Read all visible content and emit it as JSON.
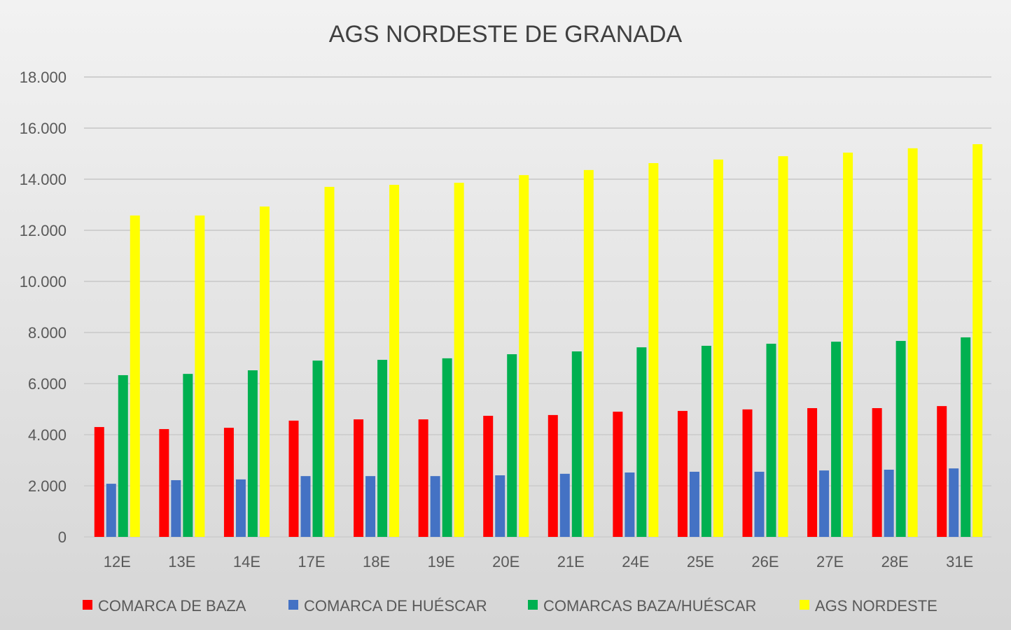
{
  "chart_data": {
    "type": "bar",
    "title": "AGS NORDESTE DE GRANADA",
    "xlabel": "",
    "ylabel": "",
    "ylim": [
      0,
      18000
    ],
    "yticks": [
      "0",
      "2.000",
      "4.000",
      "6.000",
      "8.000",
      "10.000",
      "12.000",
      "14.000",
      "16.000",
      "18.000"
    ],
    "ytick_values": [
      0,
      2000,
      4000,
      6000,
      8000,
      10000,
      12000,
      14000,
      16000,
      18000
    ],
    "grid": true,
    "legend_position": "bottom",
    "categories": [
      "12E",
      "13E",
      "14E",
      "17E",
      "18E",
      "19E",
      "20E",
      "21E",
      "24E",
      "25E",
      "26E",
      "27E",
      "28E",
      "31E"
    ],
    "series": [
      {
        "name": "COMARCA DE BAZA",
        "color": "#ff0000",
        "values": [
          4300,
          4220,
          4270,
          4550,
          4600,
          4600,
          4740,
          4770,
          4900,
          4930,
          4990,
          5040,
          5040,
          5120
        ]
      },
      {
        "name": "COMARCA DE HUÉSCAR",
        "color": "#4472c4",
        "values": [
          2080,
          2220,
          2250,
          2380,
          2380,
          2380,
          2410,
          2470,
          2520,
          2550,
          2550,
          2600,
          2630,
          2680
        ]
      },
      {
        "name": "COMARCAS BAZA/HUÉSCAR",
        "color": "#00b050",
        "values": [
          6330,
          6380,
          6520,
          6900,
          6930,
          6990,
          7150,
          7260,
          7420,
          7480,
          7560,
          7640,
          7670,
          7810
        ]
      },
      {
        "name": "AGS NORDESTE",
        "color": "#ffff00",
        "values": [
          12580,
          12580,
          12930,
          13700,
          13780,
          13860,
          14160,
          14360,
          14630,
          14770,
          14900,
          15040,
          15210,
          15370
        ]
      }
    ]
  }
}
